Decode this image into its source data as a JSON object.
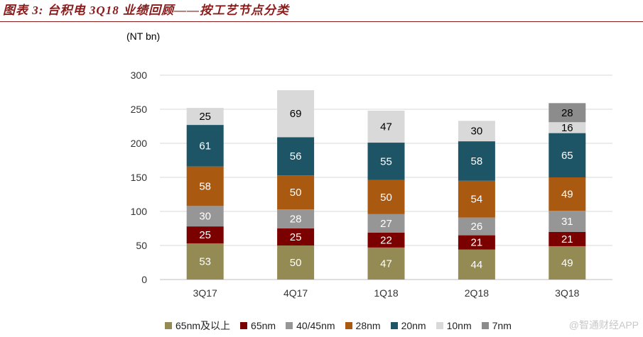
{
  "title": "图表 3:  台积电 3Q18 业绩回顾——按工艺节点分类",
  "watermark": "@智通财经APP",
  "chart_data": {
    "type": "bar",
    "stacked": true,
    "unit_label": "(NT bn)",
    "categories": [
      "3Q17",
      "4Q17",
      "1Q18",
      "2Q18",
      "3Q18"
    ],
    "ylim": [
      0,
      300
    ],
    "yticks": [
      0,
      50,
      100,
      150,
      200,
      250,
      300
    ],
    "grid": true,
    "legend_position": "bottom",
    "series": [
      {
        "name": "65nm及以上",
        "color": "#948A54",
        "label_color": "#ffffff",
        "values": [
          53,
          50,
          47,
          44,
          49
        ]
      },
      {
        "name": "65nm",
        "color": "#7B0000",
        "label_color": "#ffffff",
        "values": [
          25,
          25,
          22,
          21,
          21
        ]
      },
      {
        "name": "40/45nm",
        "color": "#969696",
        "label_color": "#ffffff",
        "values": [
          30,
          28,
          27,
          26,
          31
        ]
      },
      {
        "name": "28nm",
        "color": "#A95910",
        "label_color": "#ffffff",
        "values": [
          58,
          50,
          50,
          54,
          49
        ]
      },
      {
        "name": "20nm",
        "color": "#1D5566",
        "label_color": "#ffffff",
        "values": [
          61,
          56,
          55,
          58,
          65
        ]
      },
      {
        "name": "10nm",
        "color": "#D9D9D9",
        "label_color": "#000000",
        "values": [
          25,
          69,
          47,
          30,
          16
        ]
      },
      {
        "name": "7nm",
        "color": "#8C8C8C",
        "label_color": "#000000",
        "values": [
          null,
          null,
          null,
          null,
          28
        ]
      }
    ]
  }
}
